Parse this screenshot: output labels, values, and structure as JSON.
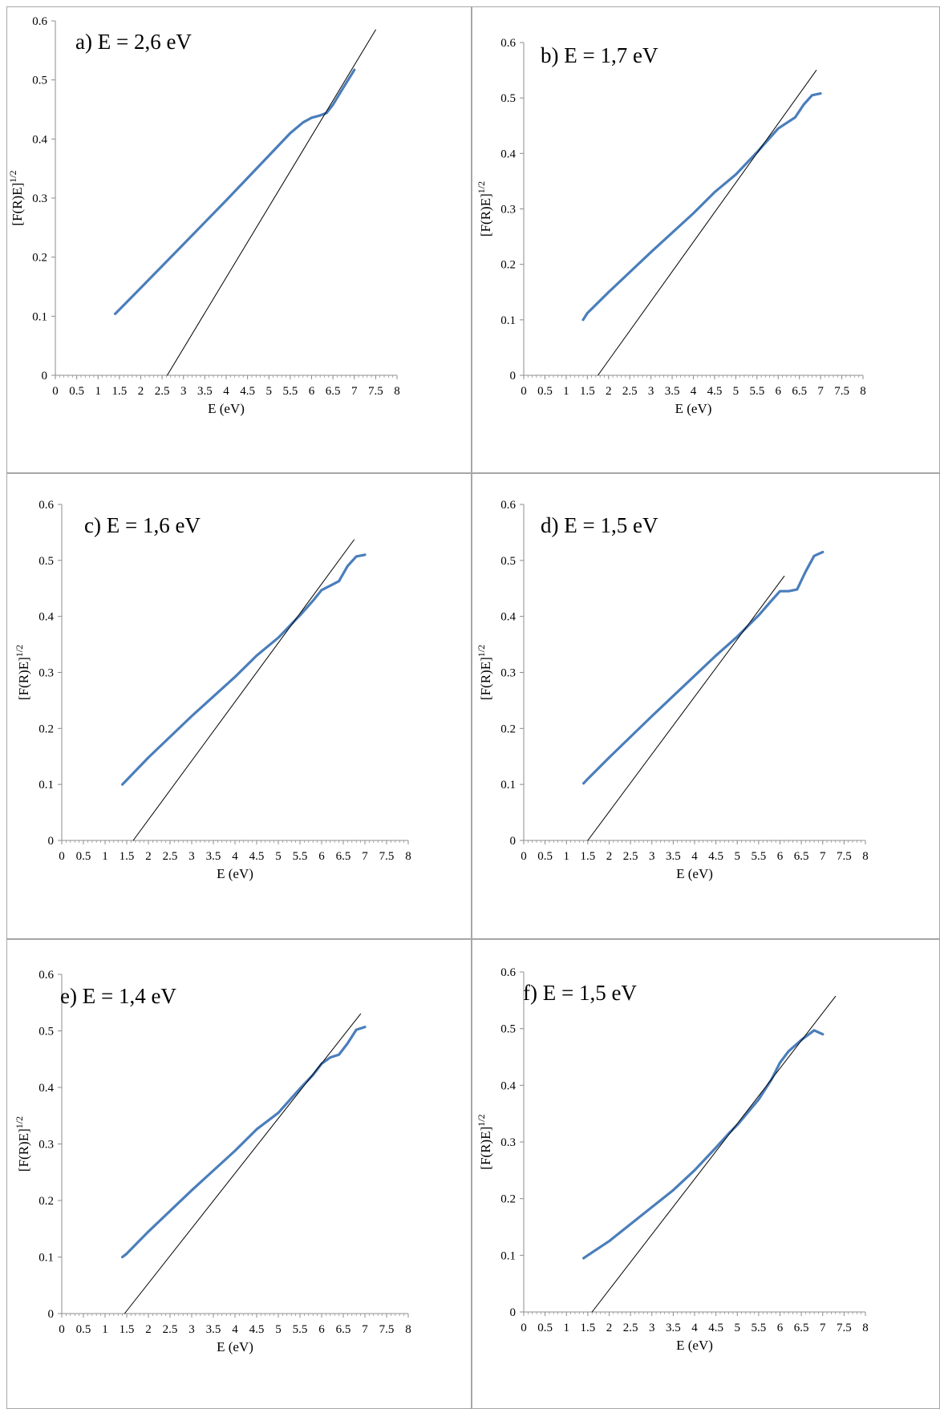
{
  "chart_data": [
    {
      "type": "line",
      "title": "a) E = 2,6 eV",
      "xlabel": "E (eV)",
      "ylabel": "[F(R)E]",
      "ylabel_superscript": "1/2",
      "xlim": [
        0,
        8
      ],
      "ylim": [
        0,
        0.6
      ],
      "x_ticks": [
        "0",
        "0.5",
        "1",
        "1.5",
        "2",
        "2.5",
        "3",
        "3.5",
        "4",
        "4.5",
        "5",
        "5.5",
        "6",
        "6.5",
        "7",
        "7.5",
        "8"
      ],
      "y_ticks": [
        "0",
        "0.1",
        "0.2",
        "0.3",
        "0.4",
        "0.5",
        "0.6"
      ],
      "series": [
        {
          "color": "#4a7ebb",
          "x": [
            1.4,
            2.0,
            3.0,
            4.0,
            5.0,
            5.5,
            5.8,
            6.0,
            6.2,
            6.35,
            6.5,
            6.7,
            7.0
          ],
          "y": [
            0.104,
            0.148,
            0.222,
            0.296,
            0.372,
            0.41,
            0.428,
            0.436,
            0.44,
            0.444,
            0.458,
            0.482,
            0.517
          ]
        },
        {
          "color": "#000000",
          "x": [
            2.62,
            7.5
          ],
          "y": [
            0.0,
            0.585
          ]
        }
      ]
    },
    {
      "type": "line",
      "title": "b) E = 1,7 eV",
      "xlabel": "E (eV)",
      "ylabel": "[F(R)E]",
      "ylabel_superscript": "1/2",
      "xlim": [
        0,
        8
      ],
      "ylim": [
        0,
        0.6
      ],
      "x_ticks": [
        "0",
        "0.5",
        "1",
        "1.5",
        "2",
        "2.5",
        "3",
        "3.5",
        "4",
        "4.5",
        "5",
        "5.5",
        "6",
        "6.5",
        "7",
        "7.5",
        "8"
      ],
      "y_ticks": [
        "0",
        "0.1",
        "0.2",
        "0.3",
        "0.4",
        "0.5",
        "0.6"
      ],
      "series": [
        {
          "color": "#4a7ebb",
          "x": [
            1.4,
            1.5,
            2.0,
            3.0,
            4.0,
            4.5,
            5.0,
            5.5,
            5.8,
            6.0,
            6.2,
            6.4,
            6.6,
            6.8,
            7.0
          ],
          "y": [
            0.1,
            0.112,
            0.15,
            0.222,
            0.292,
            0.33,
            0.362,
            0.402,
            0.428,
            0.445,
            0.455,
            0.465,
            0.488,
            0.505,
            0.508
          ]
        },
        {
          "color": "#000000",
          "x": [
            1.75,
            6.9
          ],
          "y": [
            0.0,
            0.55
          ]
        }
      ]
    },
    {
      "type": "line",
      "title": "c) E = 1,6 eV",
      "xlabel": "E (eV)",
      "ylabel": "[F(R)E]",
      "ylabel_superscript": "1/2",
      "xlim": [
        0,
        8
      ],
      "ylim": [
        0,
        0.6
      ],
      "x_ticks": [
        "0",
        "0.5",
        "1",
        "1.5",
        "2",
        "2.5",
        "3",
        "3.5",
        "4",
        "4.5",
        "5",
        "5.5",
        "6",
        "6.5",
        "7",
        "7.5",
        "8"
      ],
      "y_ticks": [
        "0",
        "0.1",
        "0.2",
        "0.3",
        "0.4",
        "0.5",
        "0.6"
      ],
      "series": [
        {
          "color": "#4a7ebb",
          "x": [
            1.4,
            1.5,
            2.0,
            3.0,
            4.0,
            4.5,
            5.0,
            5.5,
            5.8,
            6.0,
            6.2,
            6.4,
            6.6,
            6.8,
            7.0
          ],
          "y": [
            0.1,
            0.108,
            0.148,
            0.222,
            0.292,
            0.33,
            0.362,
            0.402,
            0.428,
            0.447,
            0.455,
            0.463,
            0.49,
            0.507,
            0.51
          ]
        },
        {
          "color": "#000000",
          "x": [
            1.65,
            6.75
          ],
          "y": [
            0.0,
            0.537
          ]
        }
      ]
    },
    {
      "type": "line",
      "title": "d) E = 1,5 eV",
      "xlabel": "E (eV)",
      "ylabel": "[F(R)E]",
      "ylabel_superscript": "1/2",
      "xlim": [
        0,
        8
      ],
      "ylim": [
        0,
        0.6
      ],
      "x_ticks": [
        "0",
        "0.5",
        "1",
        "1.5",
        "2",
        "2.5",
        "3",
        "3.5",
        "4",
        "4.5",
        "5",
        "5.5",
        "6",
        "6.5",
        "7",
        "7.5",
        "8"
      ],
      "y_ticks": [
        "0",
        "0.1",
        "0.2",
        "0.3",
        "0.4",
        "0.5",
        "0.6"
      ],
      "series": [
        {
          "color": "#4a7ebb",
          "x": [
            1.4,
            1.5,
            2.0,
            3.0,
            4.0,
            4.5,
            5.0,
            5.5,
            5.8,
            6.0,
            6.2,
            6.4,
            6.6,
            6.8,
            7.0
          ],
          "y": [
            0.102,
            0.11,
            0.148,
            0.222,
            0.294,
            0.33,
            0.364,
            0.402,
            0.428,
            0.445,
            0.445,
            0.448,
            0.48,
            0.508,
            0.515
          ]
        },
        {
          "color": "#000000",
          "x": [
            1.5,
            6.1
          ],
          "y": [
            0.0,
            0.472
          ]
        }
      ]
    },
    {
      "type": "line",
      "title": "e) E = 1,4 eV",
      "xlabel": "E (eV)",
      "ylabel": "[F(R)E]",
      "ylabel_superscript": "1/2",
      "xlim": [
        0,
        8
      ],
      "ylim": [
        0,
        0.6
      ],
      "x_ticks": [
        "0",
        "0.5",
        "1",
        "1.5",
        "2",
        "2.5",
        "3",
        "3.5",
        "4",
        "4.5",
        "5",
        "5.5",
        "6",
        "6.5",
        "7",
        "7.5",
        "8"
      ],
      "y_ticks": [
        "0",
        "0.1",
        "0.2",
        "0.3",
        "0.4",
        "0.5",
        "0.6"
      ],
      "series": [
        {
          "color": "#4a7ebb",
          "x": [
            1.4,
            1.5,
            2.0,
            3.0,
            4.0,
            4.5,
            5.0,
            5.5,
            5.8,
            6.0,
            6.2,
            6.4,
            6.6,
            6.8,
            7.0
          ],
          "y": [
            0.1,
            0.106,
            0.145,
            0.218,
            0.288,
            0.326,
            0.355,
            0.398,
            0.422,
            0.442,
            0.453,
            0.458,
            0.478,
            0.502,
            0.507
          ]
        },
        {
          "color": "#000000",
          "x": [
            1.45,
            6.9
          ],
          "y": [
            0.0,
            0.53
          ]
        }
      ]
    },
    {
      "type": "line",
      "title": "f) E = 1,5 eV",
      "xlabel": "E (eV)",
      "ylabel": "[F(R)E]",
      "ylabel_superscript": "1/2",
      "xlim": [
        0,
        8
      ],
      "ylim": [
        0,
        0.6
      ],
      "x_ticks": [
        "0",
        "0.5",
        "1",
        "1.5",
        "2",
        "2.5",
        "3",
        "3.5",
        "4",
        "4.5",
        "5",
        "5.5",
        "6",
        "6.5",
        "7",
        "7.5",
        "8"
      ],
      "y_ticks": [
        "0",
        "0.1",
        "0.2",
        "0.3",
        "0.4",
        "0.5",
        "0.6"
      ],
      "series": [
        {
          "color": "#4a7ebb",
          "x": [
            1.4,
            1.5,
            2.0,
            2.5,
            3.0,
            3.5,
            4.0,
            4.5,
            4.8,
            5.0,
            5.5,
            5.8,
            6.0,
            6.2,
            6.5,
            6.8,
            7.0
          ],
          "y": [
            0.095,
            0.1,
            0.125,
            0.155,
            0.185,
            0.215,
            0.25,
            0.29,
            0.315,
            0.33,
            0.375,
            0.41,
            0.44,
            0.46,
            0.48,
            0.497,
            0.49
          ]
        },
        {
          "color": "#000000",
          "x": [
            1.6,
            7.3
          ],
          "y": [
            0.0,
            0.557
          ]
        }
      ]
    }
  ]
}
